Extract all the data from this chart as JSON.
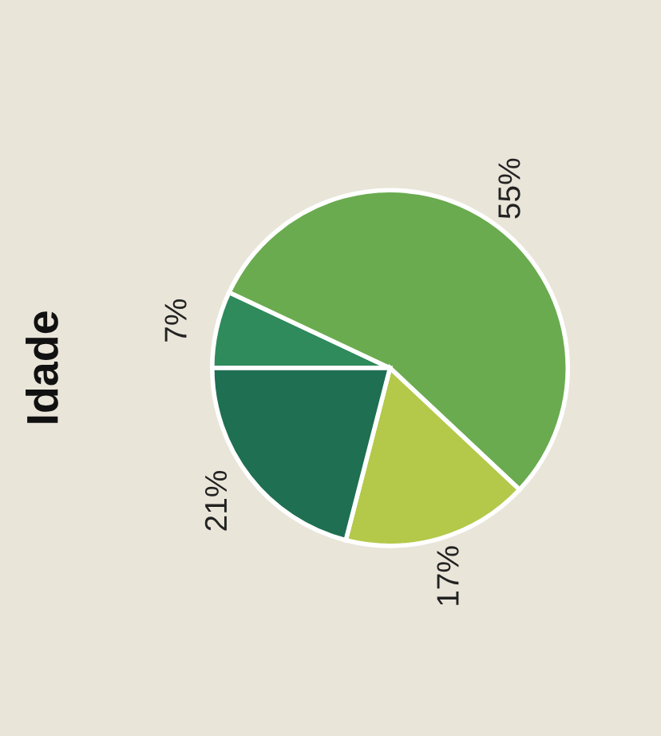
{
  "chart_data": {
    "type": "pie",
    "title": "Idade",
    "categories": [
      null,
      null,
      null,
      null
    ],
    "values": [
      7,
      55,
      17,
      21
    ],
    "colors": [
      "#2f8a5c",
      "#6aab4f",
      "#b4c84a",
      "#1f6f52"
    ],
    "value_labels": [
      "7%",
      "55%",
      "17%",
      "21%"
    ]
  }
}
